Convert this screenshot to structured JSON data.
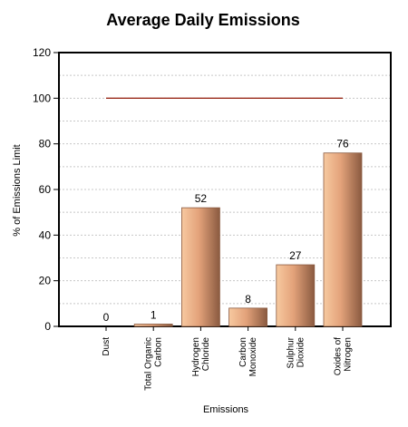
{
  "chart_data": {
    "type": "bar",
    "title": "Average Daily Emissions",
    "xlabel": "Emissions",
    "ylabel": "% of Emissions Limit",
    "ylim": [
      0,
      120
    ],
    "yticks": [
      0,
      20,
      40,
      60,
      80,
      100,
      120
    ],
    "categories": [
      [
        "Dust"
      ],
      [
        "Total Organic",
        "Carbon"
      ],
      [
        "Hydrogen",
        "Chloride"
      ],
      [
        "Carbon",
        "Monoxide"
      ],
      [
        "Sulphur",
        "Dioxide"
      ],
      [
        "Oxides of",
        "Nitrogen"
      ]
    ],
    "values": [
      0,
      1,
      52,
      8,
      27,
      76
    ],
    "limit_line": 100,
    "grid": true,
    "colors": {
      "bar_light": "#f7c9a0",
      "bar_mid": "#e3a27a",
      "bar_dark": "#8a5a40",
      "limit_line": "#9a2b1a",
      "grid": "#c8c8c8"
    }
  }
}
